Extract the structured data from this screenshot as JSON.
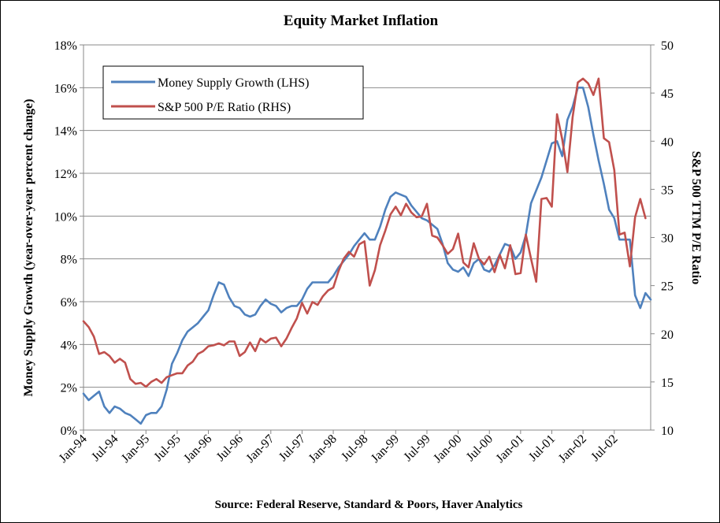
{
  "chart_data": {
    "type": "line",
    "title": "Equity Market Inflation",
    "source": "Source:  Federal Reserve, Standard & Poors, Haver Analytics",
    "ylabel_left": "Money Supply Growth (year-over-year percent change)",
    "ylabel_right": "S&P 500 TTM P/E Ratio",
    "y_left": {
      "min": 0,
      "max": 18,
      "ticks": [
        "0%",
        "2%",
        "4%",
        "6%",
        "8%",
        "10%",
        "12%",
        "14%",
        "16%",
        "18%"
      ]
    },
    "y_right": {
      "min": 10,
      "max": 50,
      "ticks": [
        "10",
        "15",
        "20",
        "25",
        "30",
        "35",
        "40",
        "45",
        "50"
      ]
    },
    "x_tick_labels": [
      "Jan-94",
      "Jul-94",
      "Jan-95",
      "Jul-95",
      "Jan-96",
      "Jul-96",
      "Jan-97",
      "Jul-97",
      "Jan-98",
      "Jul-98",
      "Jan-99",
      "Jul-99",
      "Jan-00",
      "Jul-00",
      "Jan-01",
      "Jul-01",
      "Jan-02",
      "Jul-02"
    ],
    "x_start": "Jan-94",
    "grid": "horizontal",
    "legend_position": "top-left",
    "series": [
      {
        "name": "Money Supply Growth (LHS)",
        "axis": "left",
        "color": "#4F81BD",
        "values": [
          1.7,
          1.4,
          1.6,
          1.8,
          1.1,
          0.8,
          1.1,
          1.0,
          0.8,
          0.7,
          0.5,
          0.3,
          0.7,
          0.8,
          0.8,
          1.1,
          1.9,
          3.1,
          3.6,
          4.2,
          4.6,
          4.8,
          5.0,
          5.3,
          5.6,
          6.3,
          6.9,
          6.8,
          6.2,
          5.8,
          5.7,
          5.4,
          5.3,
          5.4,
          5.8,
          6.1,
          5.9,
          5.8,
          5.5,
          5.7,
          5.8,
          5.8,
          6.1,
          6.6,
          6.9,
          6.9,
          6.9,
          6.9,
          7.2,
          7.6,
          7.9,
          8.2,
          8.6,
          8.9,
          9.2,
          8.9,
          8.9,
          9.5,
          10.3,
          10.9,
          11.1,
          11.0,
          10.9,
          10.5,
          10.2,
          9.9,
          9.8,
          9.6,
          9.4,
          8.7,
          7.8,
          7.5,
          7.4,
          7.6,
          7.2,
          7.8,
          8.0,
          7.5,
          7.4,
          7.7,
          8.2,
          8.7,
          8.6,
          8.0,
          8.3,
          9.1,
          10.6,
          11.2,
          11.8,
          12.6,
          13.4,
          13.5,
          12.8,
          14.5,
          15.1,
          16.0,
          16.0,
          15.1,
          13.8,
          12.6,
          11.5,
          10.3,
          9.9,
          8.9,
          8.9,
          8.9,
          6.3,
          5.7,
          6.4,
          6.1
        ]
      },
      {
        "name": "S&P 500 P/E Ratio (RHS)",
        "axis": "right",
        "color": "#C0504D",
        "values": [
          21.3,
          20.7,
          19.7,
          17.9,
          18.1,
          17.7,
          17.0,
          17.4,
          17.0,
          15.3,
          14.8,
          14.9,
          14.5,
          15.0,
          15.3,
          14.9,
          15.5,
          15.7,
          15.9,
          15.9,
          16.7,
          17.1,
          17.9,
          18.2,
          18.7,
          18.8,
          19.0,
          18.8,
          19.2,
          19.2,
          17.7,
          18.1,
          19.1,
          18.2,
          19.5,
          19.1,
          19.5,
          19.6,
          18.7,
          19.5,
          20.6,
          21.6,
          23.2,
          22.1,
          23.3,
          23.0,
          23.9,
          24.5,
          24.8,
          26.5,
          27.8,
          28.5,
          28.0,
          29.3,
          29.6,
          25.0,
          26.6,
          29.2,
          30.7,
          32.4,
          33.2,
          32.3,
          33.5,
          32.6,
          32.1,
          32.2,
          33.5,
          30.2,
          30.0,
          29.2,
          28.3,
          28.8,
          30.4,
          27.4,
          26.9,
          29.4,
          27.8,
          27.2,
          28.0,
          26.4,
          28.2,
          26.8,
          29.2,
          26.2,
          26.3,
          30.3,
          27.8,
          25.4,
          34.0,
          34.1,
          33.2,
          42.8,
          40.2,
          36.8,
          42.5,
          46.1,
          46.5,
          46.0,
          44.8,
          46.5,
          40.3,
          39.9,
          37.0,
          30.3,
          30.5,
          27.0,
          32.1,
          34.0,
          32.0
        ]
      }
    ]
  }
}
